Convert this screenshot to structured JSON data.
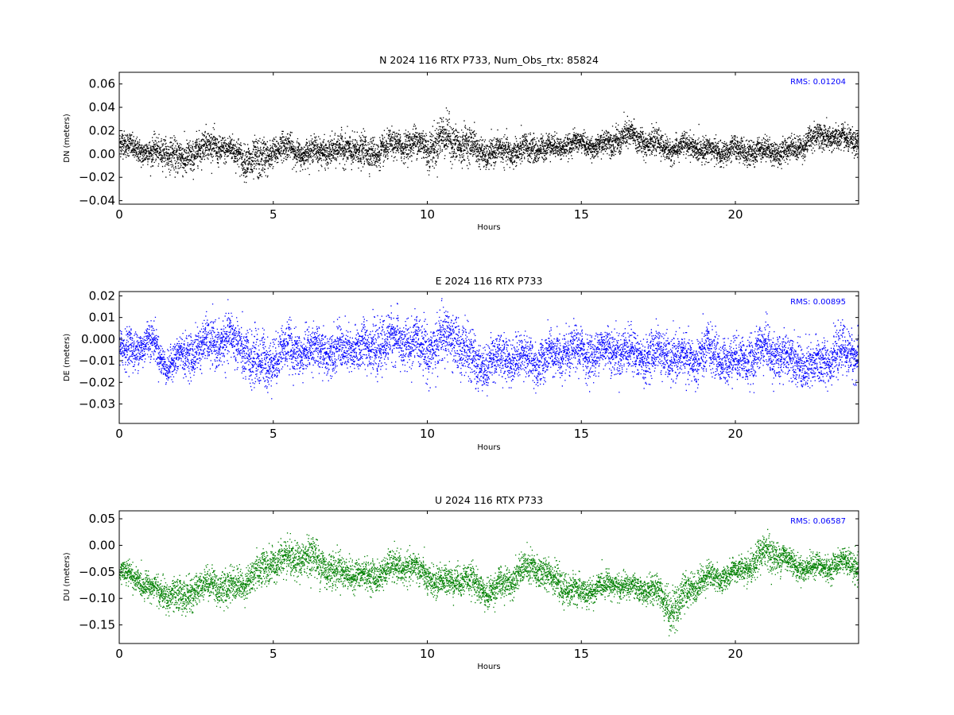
{
  "chart_data": [
    {
      "type": "scatter",
      "title": "N 2024 116 RTX  P733, Num_Obs_rtx: 85824",
      "xlabel": "Hours",
      "ylabel": "DN (meters)",
      "xlim": [
        0,
        24
      ],
      "ylim": [
        -0.043,
        0.07
      ],
      "xticks": [
        0,
        5,
        10,
        15,
        20
      ],
      "yticks": [
        -0.04,
        -0.02,
        0.0,
        0.02,
        0.04,
        0.06
      ],
      "ytick_labels": [
        "−0.04",
        "−0.02",
        "0.00",
        "0.02",
        "0.04",
        "0.06"
      ],
      "rms_label": "RMS:  0.01204",
      "color": "#000000",
      "series": [
        {
          "x": [
            0,
            0.5,
            1,
            1.5,
            2,
            2.5,
            3,
            3.5,
            4,
            4.5,
            5,
            5.5,
            6,
            6.5,
            7,
            7.5,
            8,
            8.5,
            9,
            9.5,
            10,
            10.5,
            11,
            11.5,
            12,
            12.5,
            13,
            13.5,
            14,
            14.5,
            15,
            15.5,
            16,
            16.5,
            17,
            17.5,
            18,
            18.5,
            19,
            19.5,
            20,
            20.5,
            21,
            21.5,
            22,
            22.5,
            23,
            23.5,
            24
          ],
          "y": [
            0.008,
            0.006,
            0.0,
            0.004,
            -0.006,
            0.004,
            0.008,
            0.004,
            -0.002,
            -0.008,
            0.004,
            0.006,
            0.0,
            0.004,
            0.002,
            0.006,
            0.0,
            0.004,
            0.008,
            0.01,
            0.006,
            0.014,
            0.01,
            0.006,
            0.0,
            0.004,
            0.002,
            0.006,
            0.006,
            0.008,
            0.01,
            0.006,
            0.012,
            0.016,
            0.012,
            0.008,
            0.004,
            0.008,
            0.004,
            0.002,
            0.004,
            0.002,
            0.004,
            0.002,
            0.006,
            0.014,
            0.016,
            0.012,
            0.012
          ],
          "spread": [
            0.01,
            0.009,
            0.01,
            0.011,
            0.014,
            0.012,
            0.011,
            0.01,
            0.012,
            0.016,
            0.011,
            0.01,
            0.009,
            0.01,
            0.011,
            0.012,
            0.012,
            0.011,
            0.01,
            0.011,
            0.014,
            0.016,
            0.014,
            0.012,
            0.01,
            0.01,
            0.011,
            0.01,
            0.009,
            0.008,
            0.008,
            0.008,
            0.01,
            0.011,
            0.01,
            0.009,
            0.009,
            0.009,
            0.009,
            0.009,
            0.009,
            0.009,
            0.009,
            0.009,
            0.009,
            0.01,
            0.01,
            0.009,
            0.009
          ]
        }
      ]
    },
    {
      "type": "scatter",
      "title": "E 2024 116 RTX  P733",
      "xlabel": "Hours",
      "ylabel": "DE (meters)",
      "xlim": [
        0,
        24
      ],
      "ylim": [
        -0.039,
        0.022
      ],
      "xticks": [
        0,
        5,
        10,
        15,
        20
      ],
      "yticks": [
        -0.03,
        -0.02,
        -0.01,
        0.0,
        0.01,
        0.02
      ],
      "ytick_labels": [
        "−0.03",
        "−0.02",
        "−0.01",
        "0.000",
        "0.01",
        "0.02"
      ],
      "rms_label": "RMS:  0.00895",
      "color": "#0000ff",
      "series": [
        {
          "x": [
            0,
            0.5,
            1,
            1.5,
            2,
            2.5,
            3,
            3.5,
            4,
            4.5,
            5,
            5.5,
            6,
            6.5,
            7,
            7.5,
            8,
            8.5,
            9,
            9.5,
            10,
            10.5,
            11,
            11.5,
            12,
            12.5,
            13,
            13.5,
            14,
            14.5,
            15,
            15.5,
            16,
            16.5,
            17,
            17.5,
            18,
            18.5,
            19,
            19.5,
            20,
            20.5,
            21,
            21.5,
            22,
            22.5,
            23,
            23.5,
            24
          ],
          "y": [
            -0.006,
            -0.004,
            0.0,
            -0.012,
            -0.008,
            -0.004,
            -0.002,
            0.0,
            -0.004,
            -0.012,
            -0.008,
            -0.004,
            -0.006,
            -0.004,
            -0.006,
            -0.004,
            -0.004,
            -0.002,
            0.0,
            -0.002,
            -0.004,
            0.0,
            0.0,
            -0.012,
            -0.01,
            -0.008,
            -0.008,
            -0.01,
            -0.008,
            -0.006,
            -0.006,
            -0.006,
            -0.004,
            -0.006,
            -0.008,
            -0.006,
            -0.008,
            -0.01,
            -0.006,
            -0.008,
            -0.01,
            -0.008,
            -0.004,
            -0.008,
            -0.01,
            -0.014,
            -0.008,
            -0.006,
            -0.006
          ],
          "spread": [
            0.008,
            0.008,
            0.008,
            0.006,
            0.008,
            0.009,
            0.009,
            0.01,
            0.01,
            0.012,
            0.01,
            0.009,
            0.009,
            0.009,
            0.009,
            0.009,
            0.01,
            0.01,
            0.01,
            0.01,
            0.011,
            0.011,
            0.011,
            0.01,
            0.009,
            0.009,
            0.009,
            0.009,
            0.009,
            0.009,
            0.009,
            0.009,
            0.009,
            0.009,
            0.009,
            0.009,
            0.009,
            0.009,
            0.01,
            0.009,
            0.009,
            0.009,
            0.01,
            0.009,
            0.009,
            0.01,
            0.009,
            0.009,
            0.009
          ]
        }
      ]
    },
    {
      "type": "scatter",
      "title": "U 2024 116 RTX  P733",
      "xlabel": "Hours",
      "ylabel": "DU (meters)",
      "xlim": [
        0,
        24
      ],
      "ylim": [
        -0.185,
        0.065
      ],
      "xticks": [
        0,
        5,
        10,
        15,
        20
      ],
      "yticks": [
        -0.15,
        -0.1,
        -0.05,
        0.0,
        0.05
      ],
      "ytick_labels": [
        "−0.15",
        "−0.10",
        "−0.05",
        "0.00",
        "0.05"
      ],
      "rms_label": "RMS:  0.06587",
      "color": "#008000",
      "series": [
        {
          "x": [
            0,
            0.5,
            1,
            1.5,
            2,
            2.5,
            3,
            3.5,
            4,
            4.5,
            5,
            5.5,
            6,
            6.5,
            7,
            7.5,
            8,
            8.5,
            9,
            9.5,
            10,
            10.5,
            11,
            11.5,
            12,
            12.5,
            13,
            13.5,
            14,
            14.5,
            15,
            15.5,
            16,
            16.5,
            17,
            17.5,
            18,
            18.5,
            19,
            19.5,
            20,
            20.5,
            21,
            21.5,
            22,
            22.5,
            23,
            23.5,
            24
          ],
          "y": [
            -0.05,
            -0.06,
            -0.08,
            -0.09,
            -0.1,
            -0.08,
            -0.07,
            -0.08,
            -0.07,
            -0.05,
            -0.03,
            -0.03,
            -0.02,
            -0.03,
            -0.05,
            -0.05,
            -0.06,
            -0.05,
            -0.04,
            -0.04,
            -0.06,
            -0.07,
            -0.06,
            -0.07,
            -0.09,
            -0.07,
            -0.05,
            -0.04,
            -0.06,
            -0.08,
            -0.09,
            -0.08,
            -0.07,
            -0.08,
            -0.08,
            -0.09,
            -0.12,
            -0.08,
            -0.06,
            -0.06,
            -0.05,
            -0.04,
            -0.01,
            -0.02,
            -0.04,
            -0.04,
            -0.04,
            -0.03,
            -0.04
          ],
          "spread": [
            0.02,
            0.02,
            0.02,
            0.025,
            0.03,
            0.025,
            0.025,
            0.03,
            0.025,
            0.03,
            0.03,
            0.03,
            0.03,
            0.035,
            0.03,
            0.025,
            0.025,
            0.025,
            0.025,
            0.025,
            0.025,
            0.025,
            0.025,
            0.025,
            0.025,
            0.025,
            0.025,
            0.03,
            0.025,
            0.025,
            0.025,
            0.02,
            0.02,
            0.02,
            0.02,
            0.025,
            0.04,
            0.025,
            0.025,
            0.02,
            0.02,
            0.025,
            0.03,
            0.025,
            0.02,
            0.02,
            0.02,
            0.02,
            0.025
          ]
        }
      ]
    }
  ]
}
